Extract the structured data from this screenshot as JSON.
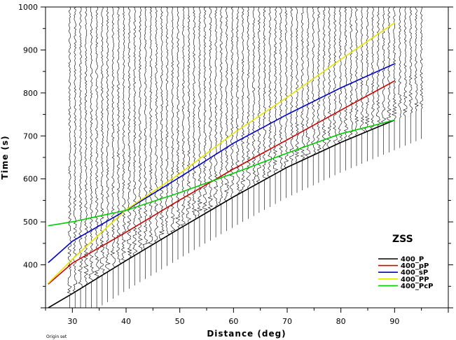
{
  "chart_data": {
    "type": "line",
    "xlabel": "Distance (deg)",
    "ylabel": "Time (s)",
    "xlim": [
      25,
      100
    ],
    "ylim": [
      300,
      1000
    ],
    "x_ticks": [
      30,
      40,
      50,
      60,
      70,
      80,
      90
    ],
    "y_ticks": [
      400,
      500,
      600,
      700,
      800,
      900,
      1000
    ],
    "grid": false,
    "legend_title": "ZSS",
    "legend_position": "right",
    "footnote": "Origin set",
    "series": [
      {
        "name": "400_P",
        "color": "#000000",
        "x": [
          25.5,
          30,
          40,
          50,
          60,
          70,
          80,
          90
        ],
        "y": [
          300,
          333,
          410,
          485,
          558,
          627,
          685,
          737
        ]
      },
      {
        "name": "400_pP",
        "color": "#cc0000",
        "x": [
          25.5,
          30,
          40,
          50,
          60,
          70,
          80,
          90
        ],
        "y": [
          355,
          404,
          476,
          551,
          623,
          691,
          760,
          828
        ]
      },
      {
        "name": "400_sP",
        "color": "#0000cc",
        "x": [
          25.5,
          30,
          40,
          50,
          60,
          70,
          80,
          90
        ],
        "y": [
          405,
          455,
          527,
          604,
          683,
          750,
          812,
          868
        ]
      },
      {
        "name": "400_PP",
        "color": "#e5e500",
        "x": [
          25.5,
          30,
          40,
          50,
          60,
          70,
          80,
          90
        ],
        "y": [
          357,
          413,
          528,
          612,
          706,
          790,
          878,
          963
        ]
      },
      {
        "name": "400_PcP",
        "color": "#00cc00",
        "x": [
          25.5,
          30,
          40,
          50,
          60,
          70,
          80,
          90
        ],
        "y": [
          491,
          500,
          527,
          568,
          613,
          660,
          705,
          737
        ]
      }
    ],
    "traces": {
      "x_start": 29.5,
      "x_end": 95,
      "count": 66,
      "signal_start_series": "400_P",
      "baseline_end_series": "400_P",
      "noise_start_times": [
        1000,
        1000,
        1000,
        600
      ]
    }
  }
}
